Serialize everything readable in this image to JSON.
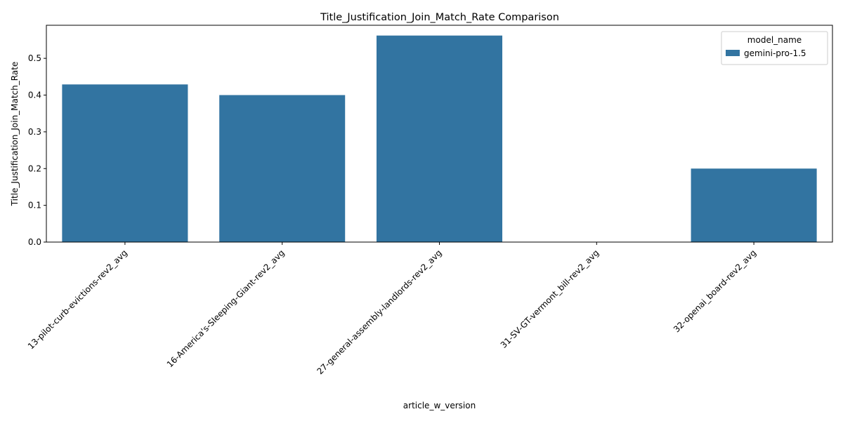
{
  "chart_data": {
    "type": "bar",
    "title": "Title_Justification_Join_Match_Rate Comparison",
    "xlabel": "article_w_version",
    "ylabel": "Title_Justification_Join_Match_Rate",
    "categories": [
      "13-pilot-curb-evictions-rev2_avg",
      "16-America's-Sleeping-Giant-rev2_avg",
      "27-general-assembly-landlords-rev2_avg",
      "31-SV-GT-vermont_bill-rev2_avg",
      "32-openai_board-rev2_avg"
    ],
    "series": [
      {
        "name": "gemini-pro-1.5",
        "values": [
          0.429,
          0.4,
          0.562,
          0.0,
          0.2
        ]
      }
    ],
    "ylim": [
      0,
      0.59
    ],
    "yticks": [
      0.0,
      0.1,
      0.2,
      0.3,
      0.4,
      0.5
    ],
    "ytick_labels": [
      "0.0",
      "0.1",
      "0.2",
      "0.3",
      "0.4",
      "0.5"
    ],
    "legend": {
      "title": "model_name",
      "position": "top-right"
    },
    "colors": {
      "bar": "#3274a1"
    },
    "grid": false
  }
}
